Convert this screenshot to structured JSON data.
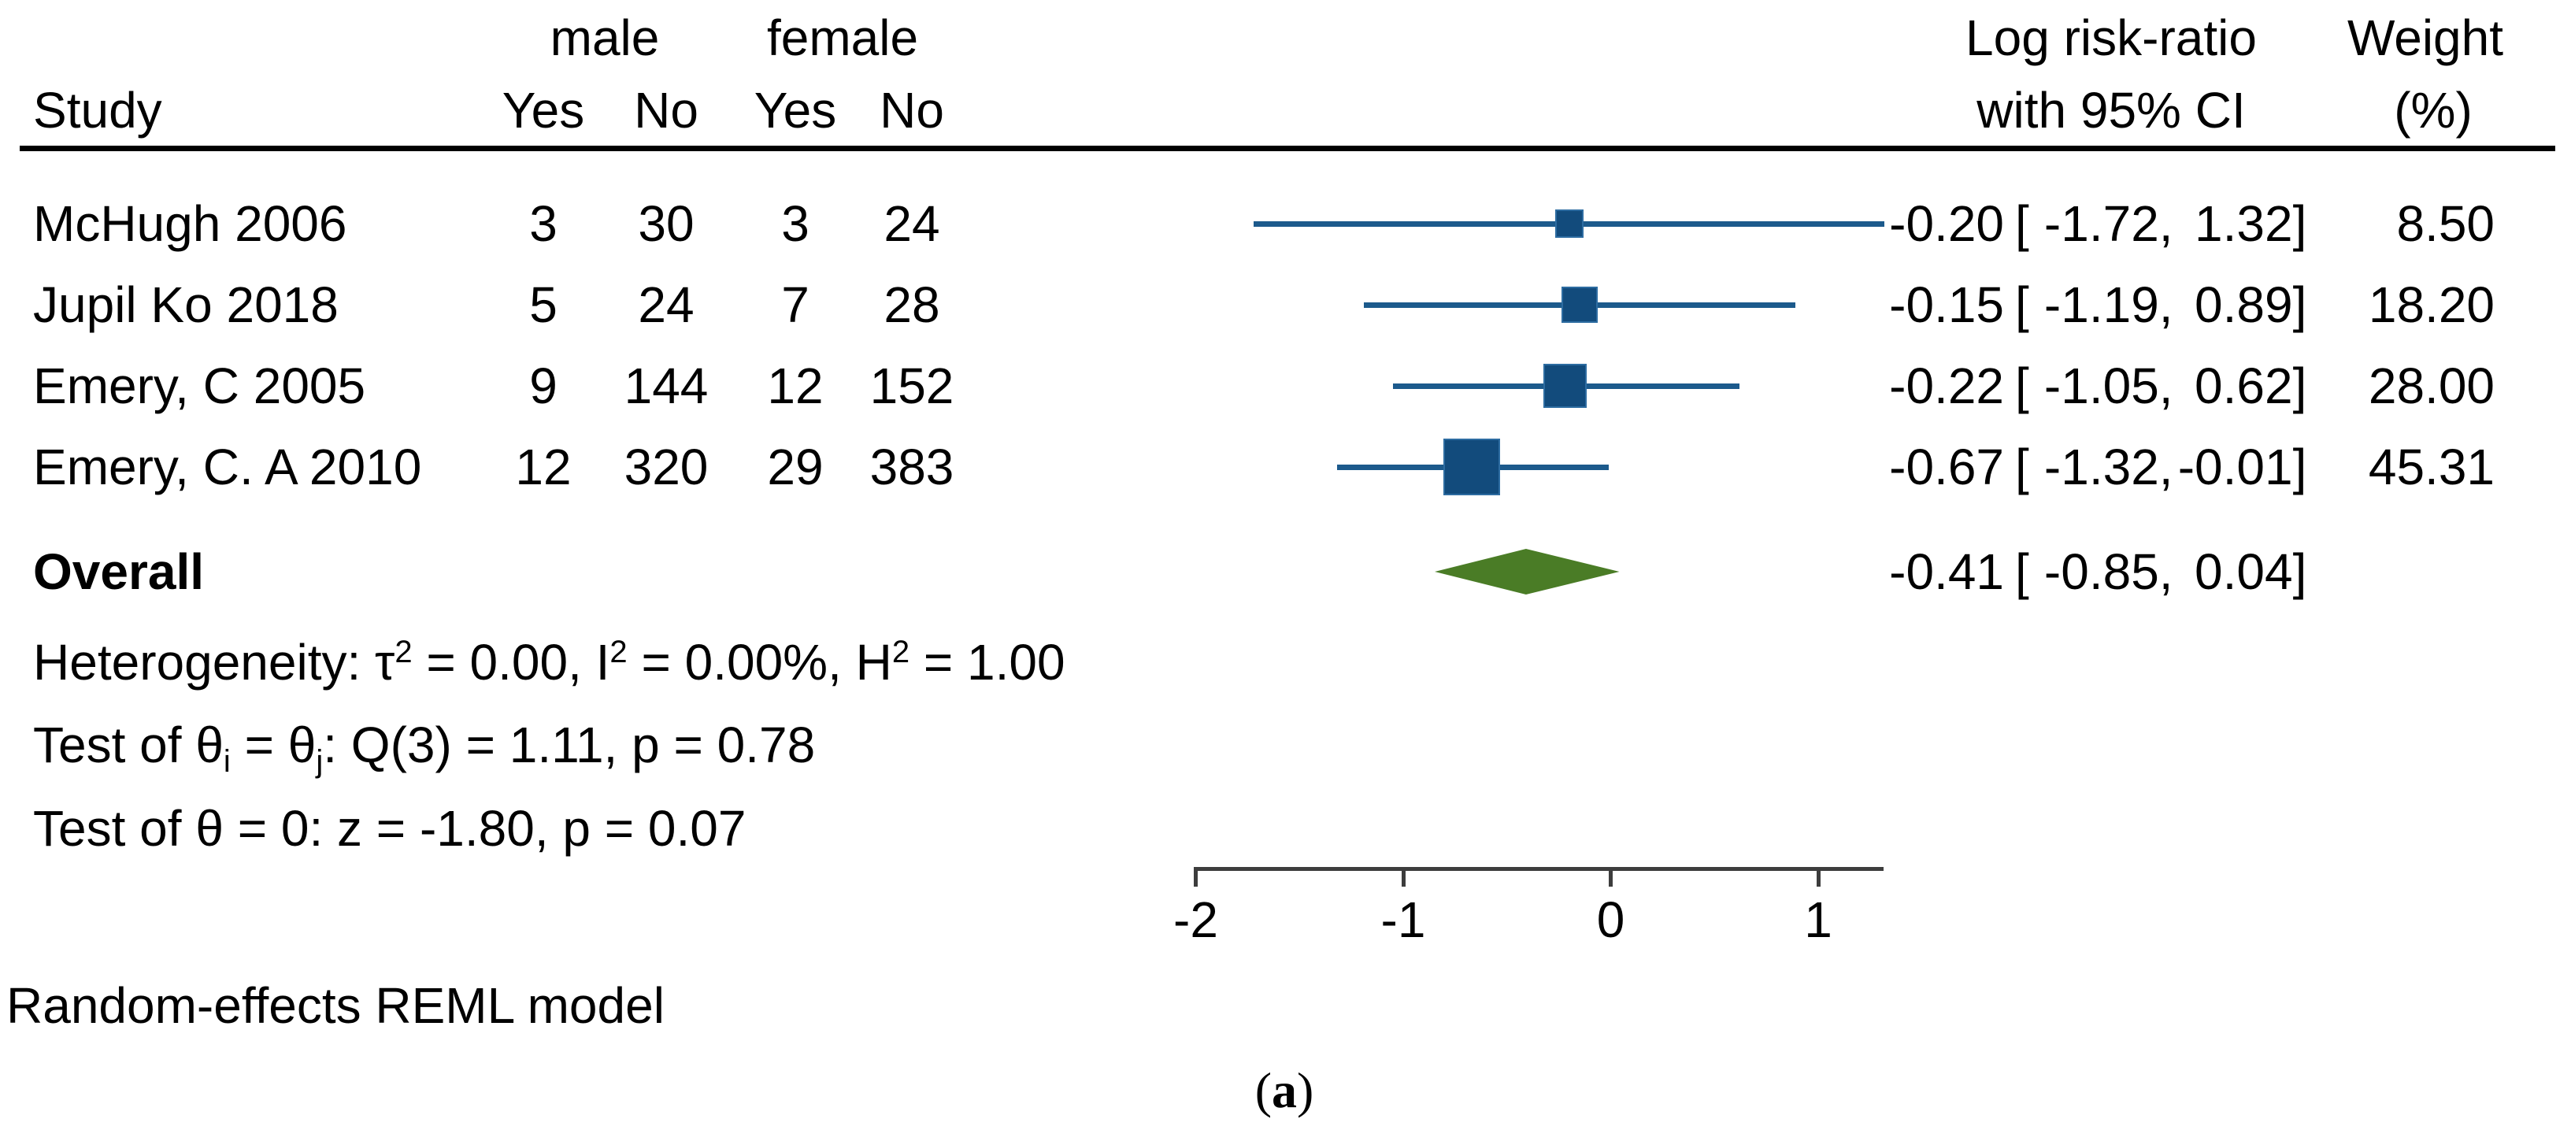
{
  "table": {
    "study_header": "Study",
    "group_headers": [
      "male",
      "female"
    ],
    "sub_headers": [
      "Yes",
      "No",
      "Yes",
      "No"
    ],
    "effect_header": [
      "Log risk-ratio",
      "with 95% CI"
    ],
    "weight_header": [
      "Weight",
      "(%)"
    ]
  },
  "stats": {
    "overall_label": "Overall",
    "heterogeneity": {
      "pre": "Heterogeneity: τ",
      "sup1": "2",
      "mid1": " = 0.00, I",
      "sup2": "2",
      "mid2": " = 0.00%, H",
      "sup3": "2",
      "post": " = 1.00"
    },
    "test_theta_ij": {
      "pre": "Test of θ",
      "sub1": "i",
      "mid1": " = θ",
      "sub2": "j",
      "post": ": Q(3) = 1.11, p = 0.78"
    },
    "test_theta_zero": "Test of θ = 0: z = -1.80, p = 0.07"
  },
  "figure": {
    "footnote": "Random-effects REML model",
    "caption_open": "(",
    "caption_label": "a",
    "caption_close": ")"
  },
  "chart_data": {
    "type": "forest",
    "effect_measure": "Log risk-ratio",
    "x_axis": {
      "ticks": [
        -2,
        -1,
        0,
        1
      ],
      "tick_labels": [
        "-2",
        "-1",
        "0",
        "1"
      ],
      "range_shown": [
        -2,
        1.32
      ],
      "grid": false
    },
    "studies": [
      {
        "name": "McHugh 2006",
        "male_yes": 3,
        "male_no": 30,
        "female_yes": 3,
        "female_no": 24,
        "est": -0.2,
        "lo": -1.72,
        "hi": 1.32,
        "weight": 8.5,
        "est_label": "-0.20",
        "lo_label": "-1.72",
        "hi_label": "1.32",
        "weight_label": "8.50"
      },
      {
        "name": "Jupil Ko 2018",
        "male_yes": 5,
        "male_no": 24,
        "female_yes": 7,
        "female_no": 28,
        "est": -0.15,
        "lo": -1.19,
        "hi": 0.89,
        "weight": 18.2,
        "est_label": "-0.15",
        "lo_label": "-1.19",
        "hi_label": "0.89",
        "weight_label": "18.20"
      },
      {
        "name": "Emery, C 2005",
        "male_yes": 9,
        "male_no": 144,
        "female_yes": 12,
        "female_no": 152,
        "est": -0.22,
        "lo": -1.05,
        "hi": 0.62,
        "weight": 28.0,
        "est_label": "-0.22",
        "lo_label": "-1.05",
        "hi_label": "0.62",
        "weight_label": "28.00"
      },
      {
        "name": "Emery, C. A 2010",
        "male_yes": 12,
        "male_no": 320,
        "female_yes": 29,
        "female_no": 383,
        "est": -0.67,
        "lo": -1.32,
        "hi": -0.01,
        "weight": 45.31,
        "est_label": "-0.67",
        "lo_label": "-1.32",
        "hi_label": "-0.01",
        "weight_label": "45.31"
      }
    ],
    "overall": {
      "est": -0.41,
      "lo": -0.85,
      "hi": 0.04,
      "est_label": "-0.41",
      "lo_label": "-0.85",
      "hi_label": "0.04"
    },
    "ci_format": {
      "open": "[",
      "comma": ",",
      "close": "]"
    },
    "colors": {
      "square_fill": "#124b7c",
      "square_border": "#2d6ca1",
      "ci_line": "#1c5a8c",
      "diamond_fill": "#4a7c26",
      "axis": "#3d3d3d",
      "text": "#000000"
    }
  }
}
